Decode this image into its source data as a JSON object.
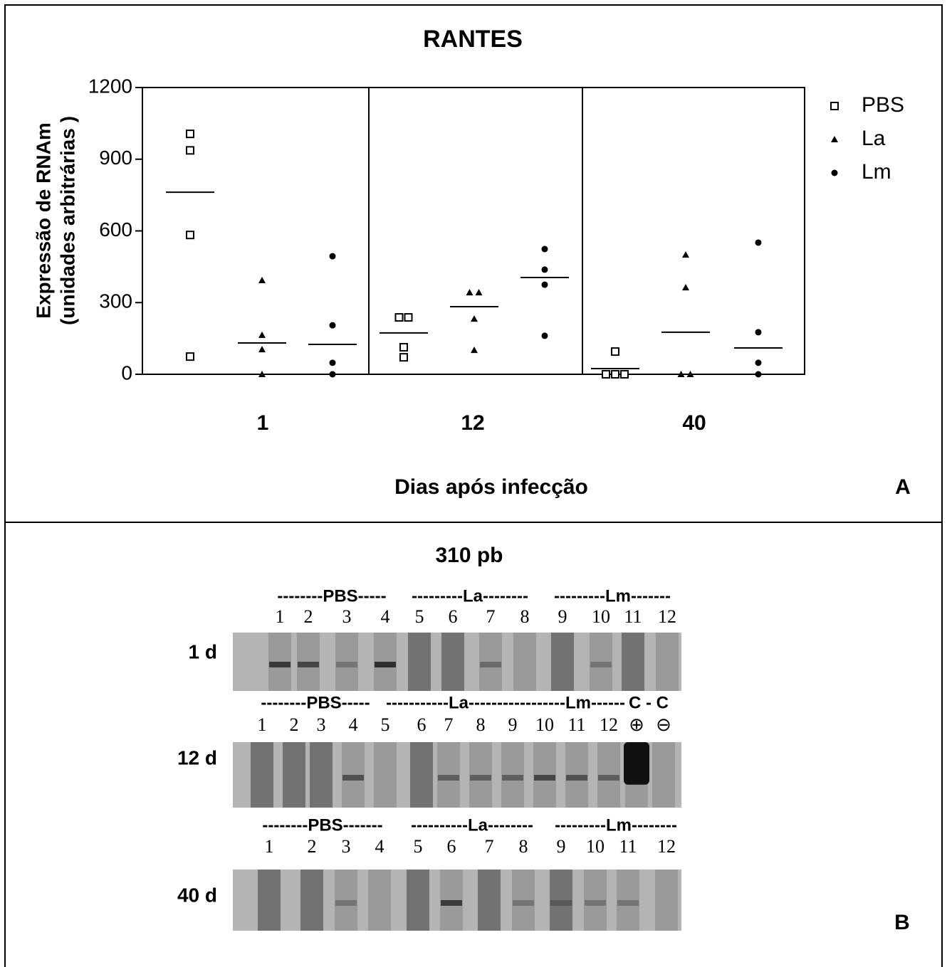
{
  "chart_data": {
    "type": "scatter",
    "title": "RANTES",
    "y_label": [
      "Expressão de RNAm",
      "(unidades arbitrárias )"
    ],
    "x_label": "Dias após infecção",
    "panel_label": "A",
    "categories": [
      "1",
      "12",
      "40"
    ],
    "ylim": [
      0,
      1200
    ],
    "yticks": [
      0,
      300,
      600,
      900,
      1200
    ],
    "series": [
      {
        "name": "PBS",
        "marker": "open-square",
        "color": "#000000",
        "values": [
          [
            1006,
            937,
            583,
            74
          ],
          [
            238,
            238,
            113,
            71
          ],
          [
            95,
            0,
            0,
            0
          ]
        ],
        "means": [
          762,
          173,
          24
        ]
      },
      {
        "name": "La",
        "marker": "triangle",
        "color": "#000000",
        "values": [
          [
            393,
            164,
            104,
            0
          ],
          [
            342,
            342,
            232,
            101
          ],
          [
            500,
            363,
            0,
            0
          ]
        ],
        "means": [
          131,
          283,
          176
        ]
      },
      {
        "name": "Lm",
        "marker": "circle",
        "color": "#000000",
        "values": [
          [
            494,
            205,
            48,
            0
          ],
          [
            524,
            438,
            375,
            161
          ],
          [
            551,
            176,
            48,
            0
          ]
        ],
        "means": [
          125,
          405,
          110
        ]
      }
    ]
  },
  "gel": {
    "title": "310 pb",
    "panel_label": "B",
    "rows": [
      {
        "label": "1 d",
        "groups": [
          "--------PBS-----",
          "---------La--------",
          "---------Lm-------"
        ],
        "lanes": [
          "1",
          "2",
          "3",
          "4",
          "5",
          "6",
          "7",
          "8",
          "9",
          "10",
          "11",
          "12"
        ]
      },
      {
        "label": "12 d",
        "groups": [
          "--------PBS-----",
          "-----------La--------",
          "---------Lm------",
          "C - C"
        ],
        "lanes": [
          "1",
          "2",
          "3",
          "4",
          "5",
          "6",
          "7",
          "8",
          "9",
          "10",
          "11",
          "12",
          "⊕",
          "⊖"
        ]
      },
      {
        "label": "40 d",
        "groups": [
          "--------PBS-------",
          "----------La--------",
          "---------Lm--------"
        ],
        "lanes": [
          "1",
          "2",
          "3",
          "4",
          "5",
          "6",
          "7",
          "8",
          "9",
          "10",
          "11",
          "12"
        ]
      }
    ]
  }
}
